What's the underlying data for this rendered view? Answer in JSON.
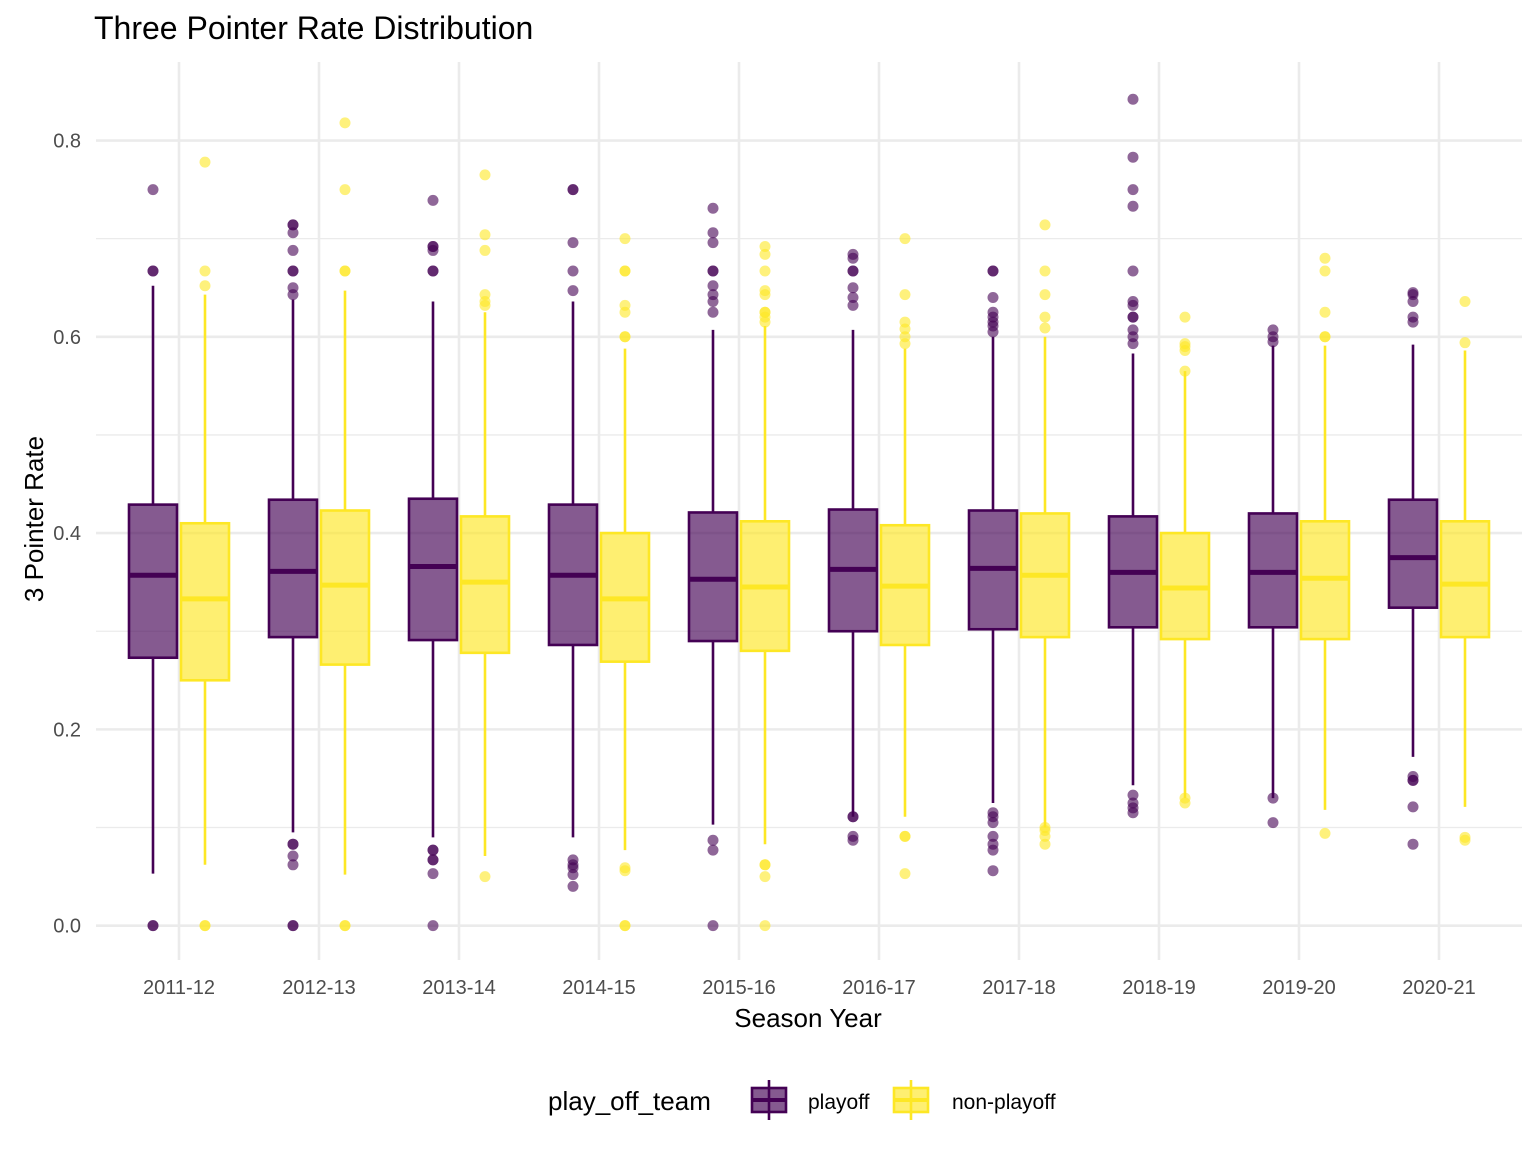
{
  "chart_data": {
    "type": "boxplot",
    "title": "Three Pointer Rate Distribution",
    "xlabel": "Season Year",
    "ylabel": "3 Pointer Rate",
    "ylim": [
      -0.035,
      0.88
    ],
    "yticks": [
      0.0,
      0.2,
      0.4,
      0.6,
      0.8
    ],
    "yticks_labels": [
      "0.0",
      "0.2",
      "0.4",
      "0.6",
      "0.8"
    ],
    "grid": true,
    "legend": {
      "title": "play_off_team",
      "position": "bottom"
    },
    "categories": [
      "2011-12",
      "2012-13",
      "2013-14",
      "2014-15",
      "2015-16",
      "2016-17",
      "2017-18",
      "2018-19",
      "2019-20",
      "2020-21"
    ],
    "series": [
      {
        "name": "playoff",
        "fill": "#440154",
        "stroke": "#440154",
        "boxes": [
          {
            "min": 0.053,
            "q1": 0.273,
            "median": 0.357,
            "q3": 0.429,
            "max": 0.652,
            "outliers": [
              0.0,
              0.0,
              0.667,
              0.667,
              0.75
            ]
          },
          {
            "min": 0.095,
            "q1": 0.294,
            "median": 0.361,
            "q3": 0.434,
            "max": 0.638,
            "outliers": [
              0.0,
              0.0,
              0.062,
              0.071,
              0.083,
              0.083,
              0.643,
              0.65,
              0.667,
              0.667,
              0.688,
              0.706,
              0.714,
              0.714
            ]
          },
          {
            "min": 0.09,
            "q1": 0.291,
            "median": 0.366,
            "q3": 0.435,
            "max": 0.636,
            "outliers": [
              0.0,
              0.053,
              0.067,
              0.067,
              0.077,
              0.077,
              0.667,
              0.667,
              0.688,
              0.692,
              0.692,
              0.739
            ]
          },
          {
            "min": 0.09,
            "q1": 0.286,
            "median": 0.357,
            "q3": 0.429,
            "max": 0.636,
            "outliers": [
              0.04,
              0.052,
              0.059,
              0.062,
              0.067,
              0.647,
              0.667,
              0.696,
              0.75,
              0.75
            ]
          },
          {
            "min": 0.103,
            "q1": 0.29,
            "median": 0.353,
            "q3": 0.421,
            "max": 0.607,
            "outliers": [
              0.0,
              0.077,
              0.087,
              0.625,
              0.636,
              0.643,
              0.652,
              0.667,
              0.667,
              0.696,
              0.706,
              0.731
            ]
          },
          {
            "min": 0.111,
            "q1": 0.3,
            "median": 0.363,
            "q3": 0.424,
            "max": 0.607,
            "outliers": [
              0.087,
              0.091,
              0.111,
              0.111,
              0.632,
              0.64,
              0.65,
              0.667,
              0.667,
              0.68,
              0.684
            ]
          },
          {
            "min": 0.125,
            "q1": 0.302,
            "median": 0.364,
            "q3": 0.423,
            "max": 0.6,
            "outliers": [
              0.056,
              0.077,
              0.083,
              0.091,
              0.105,
              0.111,
              0.115,
              0.605,
              0.611,
              0.615,
              0.62,
              0.625,
              0.64,
              0.667,
              0.667
            ]
          },
          {
            "min": 0.143,
            "q1": 0.304,
            "median": 0.36,
            "q3": 0.417,
            "max": 0.583,
            "outliers": [
              0.115,
              0.12,
              0.125,
              0.133,
              0.593,
              0.6,
              0.607,
              0.62,
              0.62,
              0.632,
              0.636,
              0.667,
              0.733,
              0.75,
              0.783,
              0.842
            ]
          },
          {
            "min": 0.13,
            "q1": 0.304,
            "median": 0.36,
            "q3": 0.42,
            "max": 0.591,
            "outliers": [
              0.105,
              0.13,
              0.595,
              0.6,
              0.607
            ]
          },
          {
            "min": 0.172,
            "q1": 0.324,
            "median": 0.375,
            "q3": 0.434,
            "max": 0.592,
            "outliers": [
              0.083,
              0.121,
              0.148,
              0.148,
              0.152,
              0.615,
              0.62,
              0.636,
              0.643,
              0.645
            ]
          }
        ]
      },
      {
        "name": "non-playoff",
        "fill": "#fde725",
        "stroke": "#fde725",
        "boxes": [
          {
            "min": 0.062,
            "q1": 0.25,
            "median": 0.333,
            "q3": 0.41,
            "max": 0.643,
            "outliers": [
              0.0,
              0.0,
              0.652,
              0.667,
              0.778
            ]
          },
          {
            "min": 0.052,
            "q1": 0.266,
            "median": 0.347,
            "q3": 0.423,
            "max": 0.647,
            "outliers": [
              0.0,
              0.0,
              0.667,
              0.667,
              0.75,
              0.818
            ]
          },
          {
            "min": 0.071,
            "q1": 0.278,
            "median": 0.35,
            "q3": 0.417,
            "max": 0.625,
            "outliers": [
              0.05,
              0.632,
              0.636,
              0.643,
              0.688,
              0.704,
              0.765
            ]
          },
          {
            "min": 0.077,
            "q1": 0.269,
            "median": 0.333,
            "q3": 0.4,
            "max": 0.588,
            "outliers": [
              0.0,
              0.0,
              0.056,
              0.059,
              0.6,
              0.6,
              0.625,
              0.632,
              0.667,
              0.667,
              0.7
            ]
          },
          {
            "min": 0.083,
            "q1": 0.28,
            "median": 0.345,
            "q3": 0.412,
            "max": 0.611,
            "outliers": [
              0.0,
              0.05,
              0.062,
              0.062,
              0.615,
              0.62,
              0.625,
              0.625,
              0.643,
              0.647,
              0.667,
              0.684,
              0.692
            ]
          },
          {
            "min": 0.111,
            "q1": 0.286,
            "median": 0.346,
            "q3": 0.408,
            "max": 0.588,
            "outliers": [
              0.053,
              0.091,
              0.091,
              0.593,
              0.6,
              0.608,
              0.615,
              0.643,
              0.7
            ]
          },
          {
            "min": 0.1,
            "q1": 0.294,
            "median": 0.357,
            "q3": 0.42,
            "max": 0.6,
            "outliers": [
              0.083,
              0.091,
              0.097,
              0.1,
              0.609,
              0.62,
              0.643,
              0.667,
              0.714
            ]
          },
          {
            "min": 0.13,
            "q1": 0.292,
            "median": 0.344,
            "q3": 0.4,
            "max": 0.565,
            "outliers": [
              0.125,
              0.13,
              0.565,
              0.586,
              0.59,
              0.593,
              0.62
            ]
          },
          {
            "min": 0.118,
            "q1": 0.292,
            "median": 0.354,
            "q3": 0.412,
            "max": 0.591,
            "outliers": [
              0.094,
              0.6,
              0.6,
              0.625,
              0.667,
              0.68
            ]
          },
          {
            "min": 0.121,
            "q1": 0.294,
            "median": 0.348,
            "q3": 0.412,
            "max": 0.586,
            "outliers": [
              0.087,
              0.09,
              0.594,
              0.636
            ]
          }
        ]
      }
    ]
  }
}
